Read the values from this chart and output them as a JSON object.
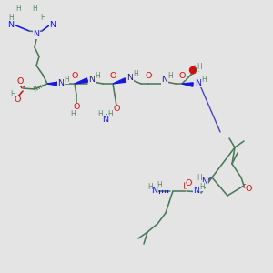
{
  "bg": "#e4e4e4",
  "C": "#4a7a58",
  "N": "#1818dd",
  "O": "#cc1111",
  "H": "#5a8a68",
  "bw": 1.15,
  "fs": 6.8,
  "fsh": 5.6
}
